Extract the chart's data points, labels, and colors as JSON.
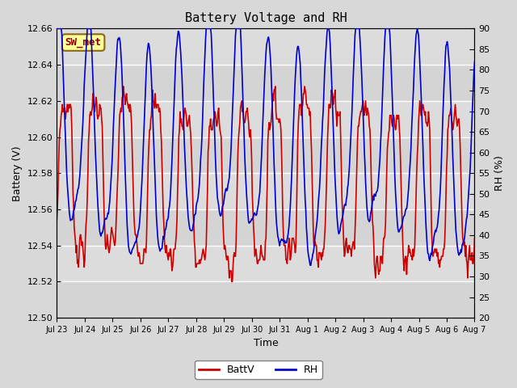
{
  "title": "Battery Voltage and RH",
  "xlabel": "Time",
  "ylabel_left": "Battery (V)",
  "ylabel_right": "RH (%)",
  "label_box": "SW_met",
  "label_box_facecolor": "#FFFF99",
  "label_box_edgecolor": "#8B6914",
  "label_box_textcolor": "#8B0000",
  "ylim_left": [
    12.5,
    12.66
  ],
  "ylim_right": [
    20,
    90
  ],
  "yticks_left": [
    12.5,
    12.52,
    12.54,
    12.56,
    12.58,
    12.6,
    12.62,
    12.64,
    12.66
  ],
  "yticks_right": [
    20,
    25,
    30,
    35,
    40,
    45,
    50,
    55,
    60,
    65,
    70,
    75,
    80,
    85,
    90
  ],
  "line_batt_color": "#CC0000",
  "line_rh_color": "#0000CC",
  "line_width": 1.2,
  "background_color": "#D8D8D8",
  "plot_bg_color": "#DCDCDC",
  "tick_dates": [
    "Jul 23",
    "Jul 24",
    "Jul 25",
    "Jul 26",
    "Jul 27",
    "Jul 28",
    "Jul 29",
    "Jul 30",
    "Jul 31",
    "Aug 1",
    "Aug 2",
    "Aug 3",
    "Aug 4",
    "Aug 5",
    "Aug 6",
    "Aug 7"
  ],
  "legend_batt": "BattV",
  "legend_rh": "RH",
  "n_points": 672
}
